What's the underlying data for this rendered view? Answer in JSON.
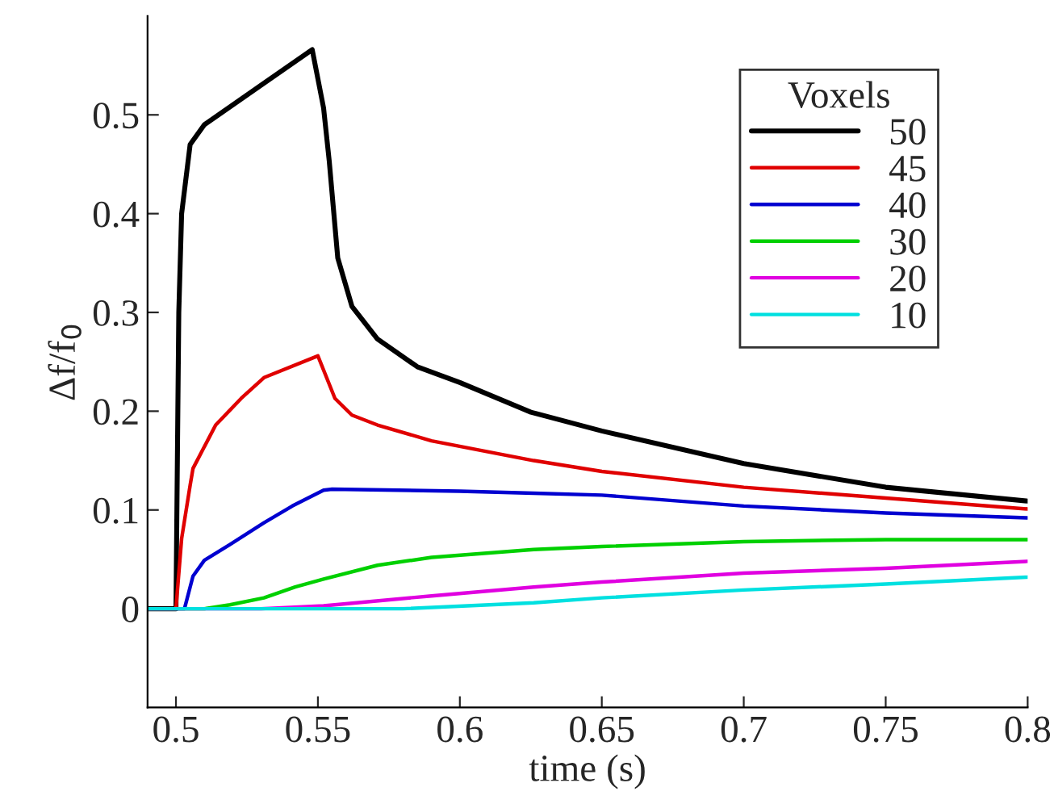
{
  "chart_data": {
    "type": "line",
    "xlabel": "time (s)",
    "ylabel": "Δf/f$_{0}$",
    "legend_title": "Voxels",
    "legend": "top right",
    "grid": false,
    "marker": "none",
    "line_style": "solid",
    "xlim": [
      0.49,
      0.8
    ],
    "ylim": [
      -0.1,
      0.6
    ],
    "xticks": [
      0.5,
      0.55,
      0.6,
      0.65,
      0.7,
      0.75,
      0.8
    ],
    "yticks": [
      0,
      0.1,
      0.2,
      0.3,
      0.4,
      0.5
    ],
    "series": [
      {
        "name": "50",
        "color": "#000000",
        "x": [
          0.49,
          0.5,
          0.501,
          0.502,
          0.505,
          0.51,
          0.515,
          0.53,
          0.548,
          0.552,
          0.554,
          0.557,
          0.562,
          0.571,
          0.585,
          0.6,
          0.625,
          0.65,
          0.7,
          0.75,
          0.8
        ],
        "values": [
          0,
          0,
          0.3,
          0.4,
          0.47,
          0.49,
          0.5,
          0.53,
          0.566,
          0.507,
          0.453,
          0.355,
          0.306,
          0.273,
          0.245,
          0.229,
          0.199,
          0.18,
          0.147,
          0.123,
          0.109
        ]
      },
      {
        "name": "45",
        "color": "#e00000",
        "x": [
          0.49,
          0.5,
          0.502,
          0.505,
          0.506,
          0.514,
          0.523,
          0.531,
          0.55,
          0.556,
          0.562,
          0.571,
          0.59,
          0.626,
          0.65,
          0.7,
          0.75,
          0.8
        ],
        "values": [
          0,
          0,
          0.071,
          0.125,
          0.142,
          0.186,
          0.213,
          0.234,
          0.256,
          0.213,
          0.196,
          0.186,
          0.17,
          0.15,
          0.139,
          0.123,
          0.112,
          0.101
        ]
      },
      {
        "name": "40",
        "color": "#0000d0",
        "x": [
          0.49,
          0.503,
          0.506,
          0.51,
          0.519,
          0.531,
          0.541,
          0.552,
          0.555,
          0.6,
          0.626,
          0.65,
          0.7,
          0.75,
          0.8
        ],
        "values": [
          0,
          0,
          0.033,
          0.049,
          0.065,
          0.087,
          0.104,
          0.12,
          0.121,
          0.119,
          0.117,
          0.115,
          0.104,
          0.097,
          0.092
        ]
      },
      {
        "name": "30",
        "color": "#00d000",
        "x": [
          0.49,
          0.51,
          0.519,
          0.531,
          0.542,
          0.552,
          0.571,
          0.59,
          0.626,
          0.65,
          0.7,
          0.75,
          0.8
        ],
        "values": [
          0,
          0,
          0.004,
          0.011,
          0.022,
          0.03,
          0.044,
          0.052,
          0.06,
          0.063,
          0.068,
          0.07,
          0.07
        ]
      },
      {
        "name": "20",
        "color": "#e000e0",
        "x": [
          0.49,
          0.53,
          0.552,
          0.59,
          0.626,
          0.65,
          0.7,
          0.75,
          0.8
        ],
        "values": [
          0,
          0,
          0.003,
          0.013,
          0.022,
          0.027,
          0.036,
          0.041,
          0.048
        ]
      },
      {
        "name": "10",
        "color": "#00e0e0",
        "x": [
          0.49,
          0.58,
          0.626,
          0.65,
          0.7,
          0.75,
          0.8
        ],
        "values": [
          0,
          0,
          0.006,
          0.011,
          0.019,
          0.025,
          0.032
        ]
      }
    ]
  }
}
